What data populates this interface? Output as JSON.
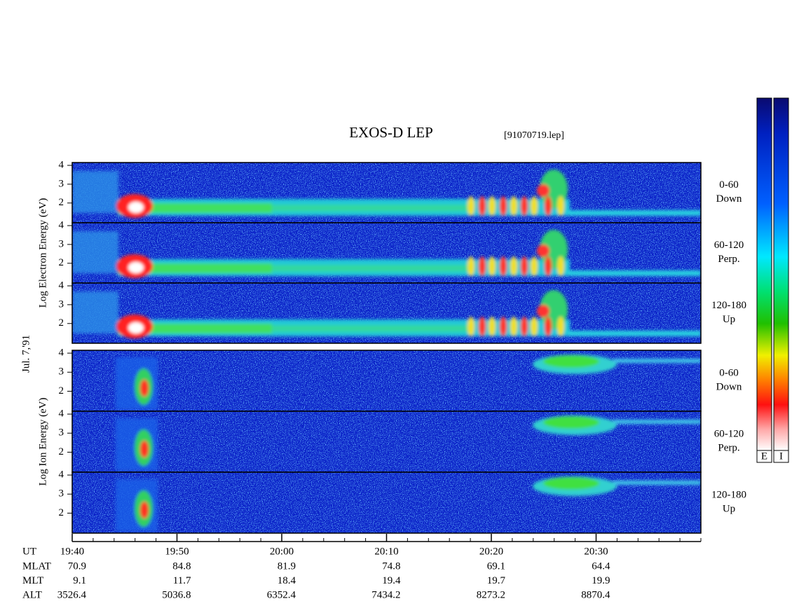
{
  "chart_data": {
    "type": "spectrogram",
    "title": "EXOS-D LEP",
    "subtitle": "[91070719.lep]",
    "date_label": "Jul. 7,'91",
    "xlim": [
      1180,
      1240
    ],
    "xticks": [
      {
        "value": 1180,
        "label": "19:40"
      },
      {
        "value": 1190,
        "label": "19:50"
      },
      {
        "value": 1200,
        "label": "20:00"
      },
      {
        "value": 1210,
        "label": "20:10"
      },
      {
        "value": 1220,
        "label": "20:20"
      },
      {
        "value": 1230,
        "label": "20:30"
      }
    ],
    "ylim": [
      0.95,
      4.15
    ],
    "yticks": [
      2,
      3,
      4
    ],
    "groups": [
      {
        "label": "Log Electron Energy (eV)",
        "panels": [
          {
            "label": [
              "0-60",
              "Down"
            ]
          },
          {
            "label": [
              "60-120",
              "Perp."
            ]
          },
          {
            "label": [
              "120-180",
              "Up"
            ]
          }
        ]
      },
      {
        "label": "Log Ion Energy (eV)",
        "panels": [
          {
            "label": [
              "0-60",
              "Down"
            ]
          },
          {
            "label": [
              "60-120",
              "Perp."
            ]
          },
          {
            "label": [
              "120-180",
              "Up"
            ]
          }
        ]
      }
    ],
    "colorbars": [
      {
        "label": "E"
      },
      {
        "label": "I"
      }
    ]
  },
  "ephemeris": {
    "ut_label": "UT",
    "rows": [
      {
        "name": "MLAT",
        "values": [
          70.9,
          84.8,
          81.9,
          74.8,
          69.1,
          64.4
        ]
      },
      {
        "name": "MLT",
        "values": [
          9.1,
          11.7,
          18.4,
          19.4,
          19.7,
          19.9
        ]
      },
      {
        "name": "ALT",
        "values": [
          3526.4,
          5036.8,
          6352.4,
          7434.2,
          8273.2,
          8870.4
        ]
      }
    ]
  }
}
